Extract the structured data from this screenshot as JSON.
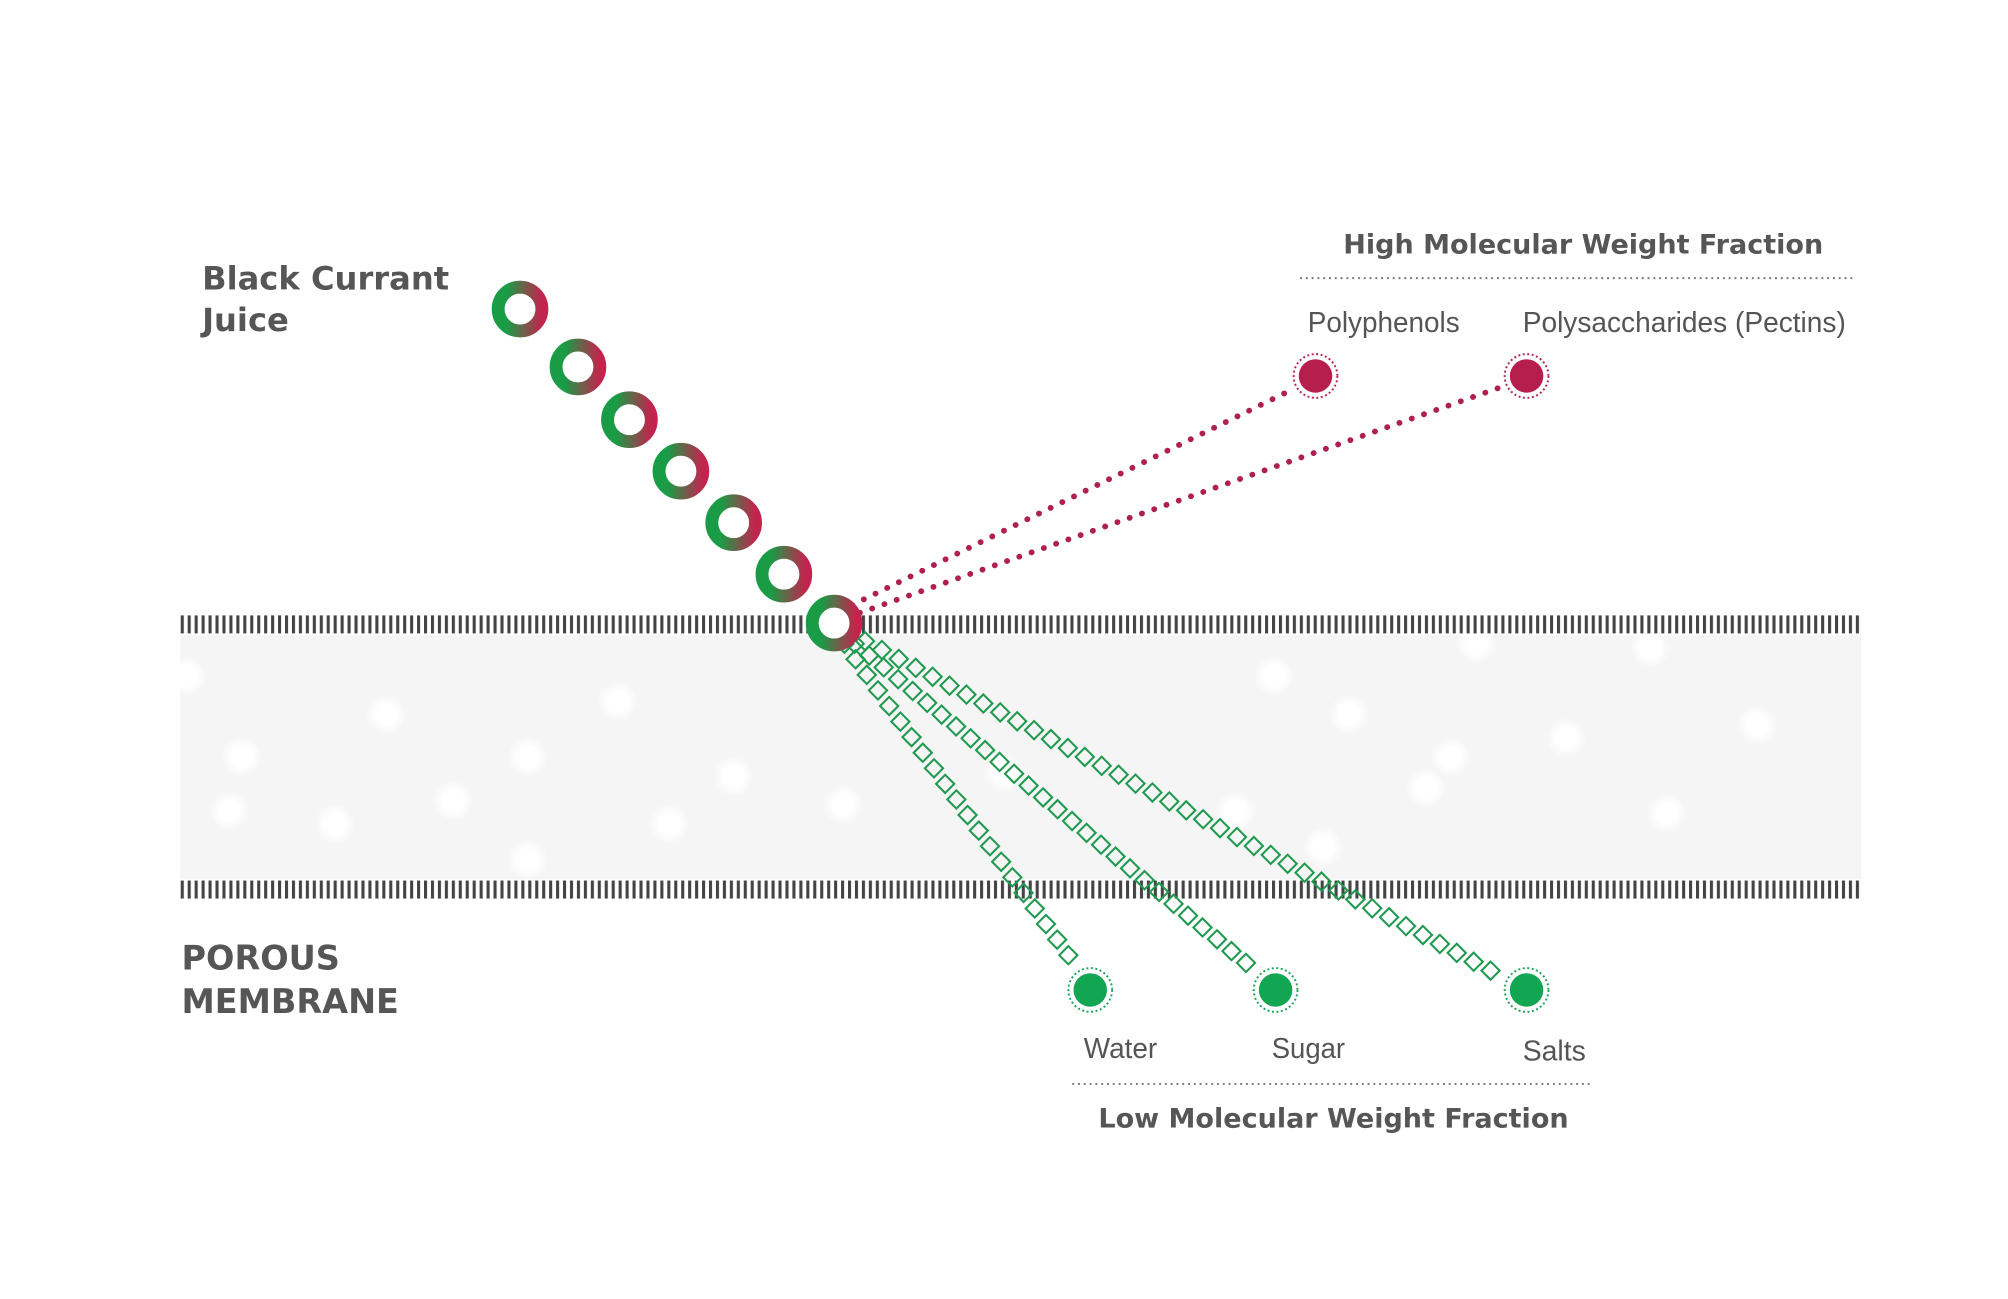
{
  "input": {
    "label_lines": [
      "Black Currant",
      "Juice"
    ]
  },
  "membrane": {
    "label_lines": [
      "POROUS",
      "MEMBRANE"
    ]
  },
  "high_fraction": {
    "title": "High Molecular Weight Fraction",
    "items": [
      "Polyphenols",
      "Polysaccharides (Pectins)"
    ]
  },
  "low_fraction": {
    "title": "Low Molecular Weight Fraction",
    "items": [
      "Water",
      "Sugar",
      "Salts"
    ]
  }
}
